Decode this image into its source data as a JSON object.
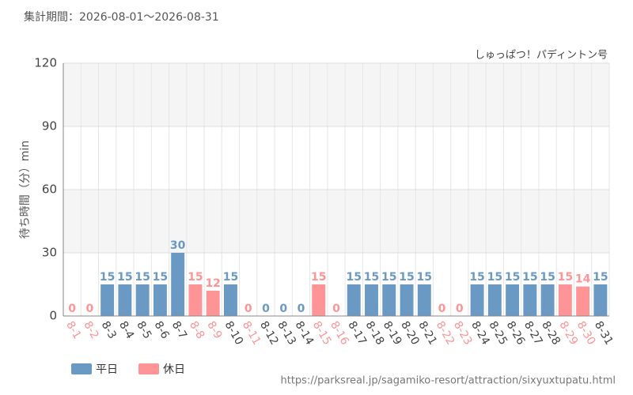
{
  "chart_data": {
    "type": "bar",
    "subtitle": "集計期間：2026-08-01～2026-08-31",
    "title": "しゅっぱつ！パディントン号",
    "y_label": "待ち時間（分）min",
    "source": "https://parksreal.jp/sagamiko-resort/attraction/sixyuxtupatu.html",
    "categories": [
      "8-1",
      "8-2",
      "8-3",
      "8-4",
      "8-5",
      "8-6",
      "8-7",
      "8-8",
      "8-9",
      "8-10",
      "8-11",
      "8-12",
      "8-13",
      "8-14",
      "8-15",
      "8-16",
      "8-17",
      "8-18",
      "8-19",
      "8-20",
      "8-21",
      "8-22",
      "8-23",
      "8-24",
      "8-25",
      "8-26",
      "8-27",
      "8-28",
      "8-29",
      "8-30",
      "8-31"
    ],
    "series": [
      {
        "name": "平日",
        "color": "#6a99c3",
        "values": [
          null,
          null,
          15,
          15,
          15,
          15,
          30,
          null,
          null,
          15,
          null,
          0,
          0,
          0,
          null,
          null,
          15,
          15,
          15,
          15,
          15,
          null,
          null,
          15,
          15,
          15,
          15,
          15,
          null,
          null,
          15
        ]
      },
      {
        "name": "休日",
        "color": "#ff9496",
        "values": [
          0,
          0,
          null,
          null,
          null,
          null,
          null,
          15,
          12,
          null,
          0,
          null,
          null,
          null,
          15,
          0,
          null,
          null,
          null,
          null,
          null,
          0,
          0,
          null,
          null,
          null,
          null,
          null,
          15,
          14,
          null
        ]
      }
    ],
    "ylim": [
      0,
      120
    ],
    "yticks": [
      0,
      30,
      60,
      90,
      120
    ],
    "grid": true
  }
}
